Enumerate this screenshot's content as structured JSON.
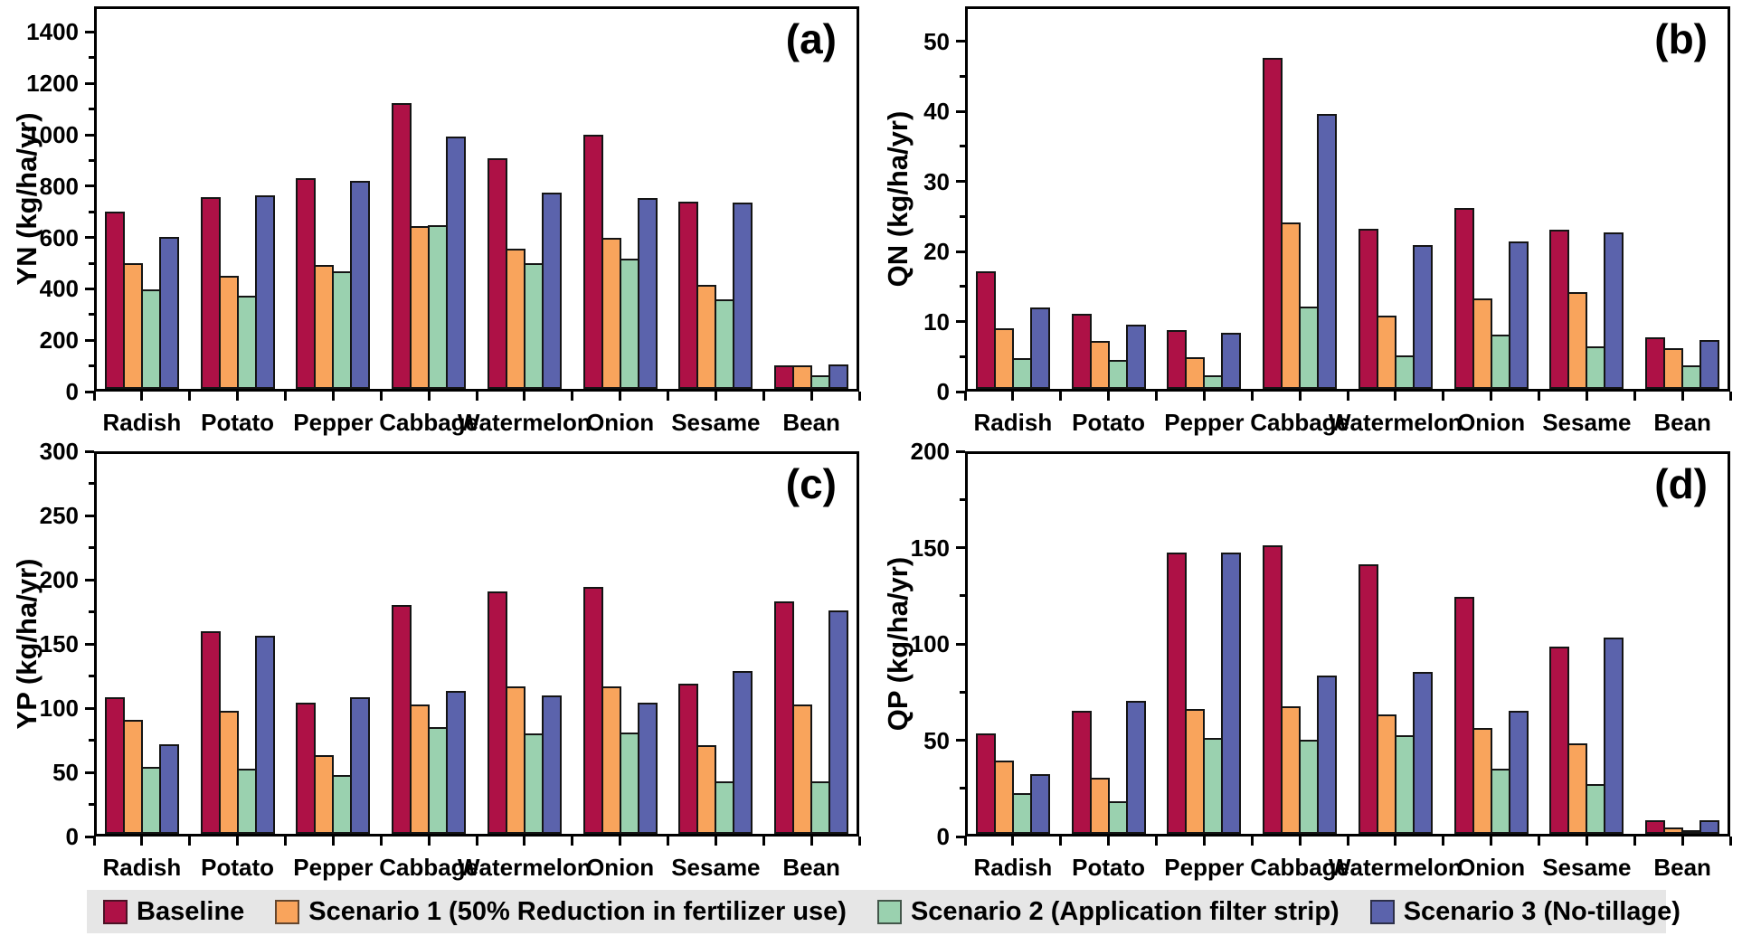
{
  "legend": {
    "items": [
      {
        "label": "Baseline",
        "color": "#AE1146"
      },
      {
        "label": "Scenario 1 (50% Reduction in fertilizer use)",
        "color": "#F9A45C"
      },
      {
        "label": "Scenario 2 (Application filter strip)",
        "color": "#9AD1AF"
      },
      {
        "label": "Scenario 3 (No-tillage)",
        "color": "#5B63AC"
      }
    ],
    "background": "#e6e6e6",
    "position": "bottom"
  },
  "chart_data": [
    {
      "type": "bar",
      "letter": "(a)",
      "ylabel": "YN (kg/ha/yr)",
      "xlabel": "",
      "ylim": [
        0,
        1500
      ],
      "ytick_step": 200,
      "grid": false,
      "categories": [
        "Radish",
        "Potato",
        "Pepper",
        "Cabbage",
        "Watermelon",
        "Onion",
        "Sesame",
        "Bean"
      ],
      "series": [
        {
          "name": "Baseline",
          "values": [
            690,
            748,
            822,
            1112,
            898,
            990,
            728,
            91
          ]
        },
        {
          "name": "Scenario 1 (50% Reduction in fertilizer use)",
          "values": [
            490,
            440,
            481,
            633,
            545,
            588,
            404,
            91
          ]
        },
        {
          "name": "Scenario 2 (Application filter strip)",
          "values": [
            388,
            362,
            458,
            638,
            491,
            506,
            350,
            54
          ]
        },
        {
          "name": "Scenario 3 (No-tillage)",
          "values": [
            593,
            752,
            810,
            981,
            764,
            744,
            725,
            96
          ]
        }
      ]
    },
    {
      "type": "bar",
      "letter": "(b)",
      "ylabel": "QN (kg/ha/yr)",
      "xlabel": "",
      "ylim": [
        0,
        55
      ],
      "ytick_step": 10,
      "grid": false,
      "categories": [
        "Radish",
        "Potato",
        "Pepper",
        "Cabbage",
        "Watermelon",
        "Onion",
        "Sesame",
        "Bean"
      ],
      "series": [
        {
          "name": "Baseline",
          "values": [
            16.8,
            10.7,
            8.4,
            47.3,
            22.8,
            25.8,
            22.7,
            7.3
          ]
        },
        {
          "name": "Scenario 1 (50% Reduction in fertilizer use)",
          "values": [
            8.6,
            6.8,
            4.5,
            23.8,
            10.4,
            12.9,
            13.8,
            5.8
          ]
        },
        {
          "name": "Scenario 2 (Application filter strip)",
          "values": [
            4.4,
            4.1,
            2.0,
            11.7,
            4.8,
            7.7,
            6.1,
            3.3
          ]
        },
        {
          "name": "Scenario 3 (No-tillage)",
          "values": [
            11.6,
            9.2,
            8.0,
            39.2,
            20.5,
            21.1,
            22.4,
            7.0
          ]
        }
      ]
    },
    {
      "type": "bar",
      "letter": "(c)",
      "ylabel": "YP (kg/ha/yr)",
      "xlabel": "",
      "ylim": [
        0,
        300
      ],
      "ytick_step": 50,
      "grid": false,
      "categories": [
        "Radish",
        "Potato",
        "Pepper",
        "Cabbage",
        "Watermelon",
        "Onion",
        "Sesame",
        "Bean"
      ],
      "series": [
        {
          "name": "Baseline",
          "values": [
            106,
            158,
            102,
            178,
            189,
            192,
            117,
            181
          ]
        },
        {
          "name": "Scenario 1 (50% Reduction in fertilizer use)",
          "values": [
            89,
            96,
            61,
            101,
            115,
            115,
            69,
            101
          ]
        },
        {
          "name": "Scenario 2 (Application filter strip)",
          "values": [
            52,
            51,
            46,
            83,
            78,
            79,
            41,
            41
          ]
        },
        {
          "name": "Scenario 3 (No-tillage)",
          "values": [
            70,
            154,
            106,
            111,
            108,
            102,
            127,
            174
          ]
        }
      ]
    },
    {
      "type": "bar",
      "letter": "(d)",
      "ylabel": "QP (kg/ha/yr)",
      "xlabel": "",
      "ylim": [
        0,
        200
      ],
      "ytick_step": 50,
      "grid": false,
      "categories": [
        "Radish",
        "Potato",
        "Pepper",
        "Cabbage",
        "Watermelon",
        "Onion",
        "Sesame",
        "Bean"
      ],
      "series": [
        {
          "name": "Baseline",
          "values": [
            52,
            64,
            146,
            150,
            140,
            123,
            97,
            7
          ]
        },
        {
          "name": "Scenario 1 (50% Reduction in fertilizer use)",
          "values": [
            38,
            29,
            65,
            66,
            62,
            55,
            47,
            3.5
          ]
        },
        {
          "name": "Scenario 2 (Application filter strip)",
          "values": [
            21,
            17,
            50,
            49,
            51,
            34,
            26,
            1.5
          ]
        },
        {
          "name": "Scenario 3 (No-tillage)",
          "values": [
            31,
            69,
            146,
            82,
            84,
            64,
            102,
            7
          ]
        }
      ]
    }
  ]
}
